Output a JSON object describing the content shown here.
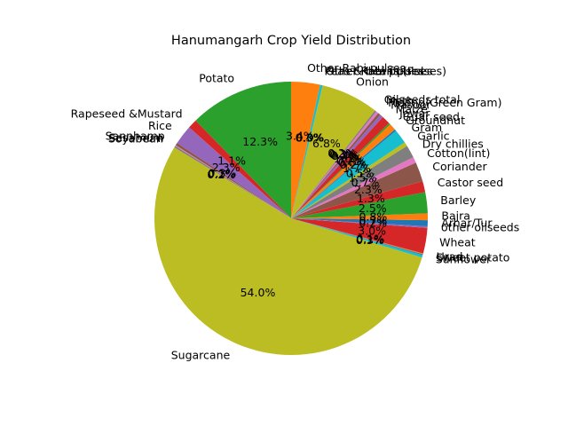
{
  "chart_data": {
    "type": "pie",
    "title": "Hanumangarh Crop Yield Distribution",
    "start_angle_deg": 90,
    "direction": "counterclockwise",
    "slices": [
      {
        "label": "Potato",
        "value": 12.3,
        "pct_text": "12.3%",
        "color": "#2ca02c"
      },
      {
        "label": "Rapeseed &Mustard",
        "value": 1.1,
        "pct_text": "1.1%",
        "color": "#d62728"
      },
      {
        "label": "Rice",
        "value": 2.3,
        "pct_text": "2.3%",
        "color": "#9467bd"
      },
      {
        "label": "Sannhamp",
        "value": 0.3,
        "pct_text": "0.3%",
        "color": "#8c564b"
      },
      {
        "label": "Sesamum",
        "value": 0.1,
        "pct_text": "0.1%",
        "color": "#e377c2"
      },
      {
        "label": "Soyabean",
        "value": 0.2,
        "pct_text": "0.2%",
        "color": "#7f7f7f"
      },
      {
        "label": "Sugarcane",
        "value": 54.0,
        "pct_text": "54.0%",
        "color": "#bcbd22"
      },
      {
        "label": "Sunflower",
        "value": 0.3,
        "pct_text": "0.3%",
        "color": "#17becf"
      },
      {
        "label": "Sweet potato",
        "value": 0.1,
        "pct_text": "0.1%",
        "color": "#1f77b4"
      },
      {
        "label": "Urad",
        "value": 0.1,
        "pct_text": "0.1%",
        "color": "#ff7f0e"
      },
      {
        "label": "Wheat",
        "value": 3.0,
        "pct_text": "3.0%",
        "color": "#d62728"
      },
      {
        "label": "other oilseeds",
        "value": 0.2,
        "pct_text": "0.2%",
        "color": "#9467bd"
      },
      {
        "label": "Arhar/Tur",
        "value": 0.7,
        "pct_text": "0.7%",
        "color": "#1f77b4"
      },
      {
        "label": "Bajra",
        "value": 0.8,
        "pct_text": "0.8%",
        "color": "#ff7f0e"
      },
      {
        "label": "Barley",
        "value": 2.5,
        "pct_text": "2.5%",
        "color": "#2ca02c"
      },
      {
        "label": "Castor seed",
        "value": 1.3,
        "pct_text": "1.3%",
        "color": "#d62728"
      },
      {
        "label": "Coriander",
        "value": 2.3,
        "pct_text": "2.3%",
        "color": "#8c564b"
      },
      {
        "label": "Cotton(lint)",
        "value": 0.7,
        "pct_text": "0.7%",
        "color": "#e377c2"
      },
      {
        "label": "Dry chillies",
        "value": 1.5,
        "pct_text": "1.5%",
        "color": "#7f7f7f"
      },
      {
        "label": "Garlic",
        "value": 0.5,
        "pct_text": "0.5%",
        "color": "#bcbd22"
      },
      {
        "label": "Gram",
        "value": 1.7,
        "pct_text": "1.7%",
        "color": "#17becf"
      },
      {
        "label": "Groundnut",
        "value": 0.2,
        "pct_text": "0.2%",
        "color": "#1f77b4"
      },
      {
        "label": "Guar seed",
        "value": 0.8,
        "pct_text": "0.8%",
        "color": "#ff7f0e"
      },
      {
        "label": "Jowar",
        "value": 0.2,
        "pct_text": "0.2%",
        "color": "#2ca02c"
      },
      {
        "label": "Maize",
        "value": 1.0,
        "pct_text": "1.0%",
        "color": "#d62728"
      },
      {
        "label": "Masoor",
        "value": 0.4,
        "pct_text": "0.4%",
        "color": "#9467bd"
      },
      {
        "label": "Moong(Green Gram)",
        "value": 0.3,
        "pct_text": "0.3%",
        "color": "#8c564b"
      },
      {
        "label": "Moth",
        "value": 0.3,
        "pct_text": "0.3%",
        "color": "#e377c2"
      },
      {
        "label": "Oilseeds total",
        "value": 0.2,
        "pct_text": "0.2%",
        "color": "#7f7f7f"
      },
      {
        "label": "Onion",
        "value": 6.8,
        "pct_text": "6.8%",
        "color": "#bcbd22"
      },
      {
        "label": "Other Kharif pulses",
        "value": 0.0,
        "pct_text": "0.0%",
        "color": "#17becf"
      },
      {
        "label": "Other Rabi pulses",
        "value": 0.0,
        "pct_text": "0.0%",
        "color": "#1f77b4"
      },
      {
        "label": "Peas & beans (Pulses)",
        "value": 0.3,
        "pct_text": "0.3%",
        "color": "#17becf"
      },
      {
        "label": "Other  Rabi pulses",
        "value": 3.4,
        "pct_text": "3.4%",
        "color": "#ff7f0e"
      }
    ]
  }
}
